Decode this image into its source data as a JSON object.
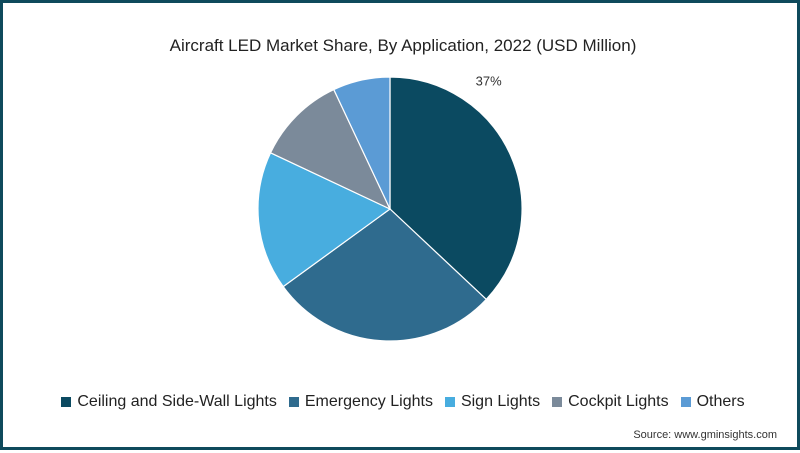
{
  "chart_data": {
    "type": "pie",
    "title": "Aircraft LED Market Share, By Application, 2022 (USD Million)",
    "categories": [
      "Ceiling and Side-Wall Lights",
      "Emergency Lights",
      "Sign Lights",
      "Cockpit Lights",
      "Others"
    ],
    "values": [
      37,
      28,
      17,
      11,
      7
    ],
    "colors": [
      "#0b4a61",
      "#2f6b8e",
      "#48addf",
      "#7b8a9a",
      "#5b9bd5"
    ],
    "data_labels": [
      "37%",
      "",
      "",
      "",
      ""
    ],
    "legend_position": "bottom-center",
    "start_angle_deg": 0,
    "direction": "clockwise"
  },
  "source": "Source: www.gminsights.com"
}
